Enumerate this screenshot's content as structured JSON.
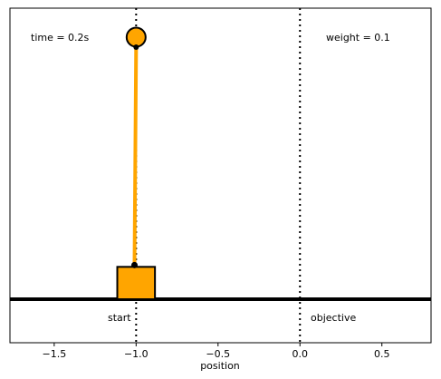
{
  "chart_data": {
    "type": "scatter",
    "title": "",
    "xlabel": "position",
    "ylabel": "",
    "xlim": [
      -1.77,
      0.8
    ],
    "ylim": [
      -0.05,
      1.35
    ],
    "xticks": [
      -1.5,
      -1.0,
      -0.5,
      0.0,
      0.5
    ],
    "xtick_labels": [
      "−1.5",
      "−1.0",
      "−0.5",
      "0.0",
      "0.5"
    ],
    "grid": false,
    "annotations": {
      "time": "time = 0.2s",
      "weight": "weight = 0.1",
      "start": "start",
      "objective": "objective"
    },
    "markers": {
      "start_x": -1.0,
      "objective_x": 0.0
    },
    "cart": {
      "center_x": -1.0,
      "width": 0.23,
      "height": 0.15,
      "pivot_x": -1.01
    },
    "pendulum": {
      "tip_x": -1.0,
      "angle_from_vertical_deg": 0.8
    },
    "colors": {
      "cart": "#ffa500",
      "pole": "#ffa500",
      "bob": "#ffa500",
      "outline": "#000000"
    }
  }
}
